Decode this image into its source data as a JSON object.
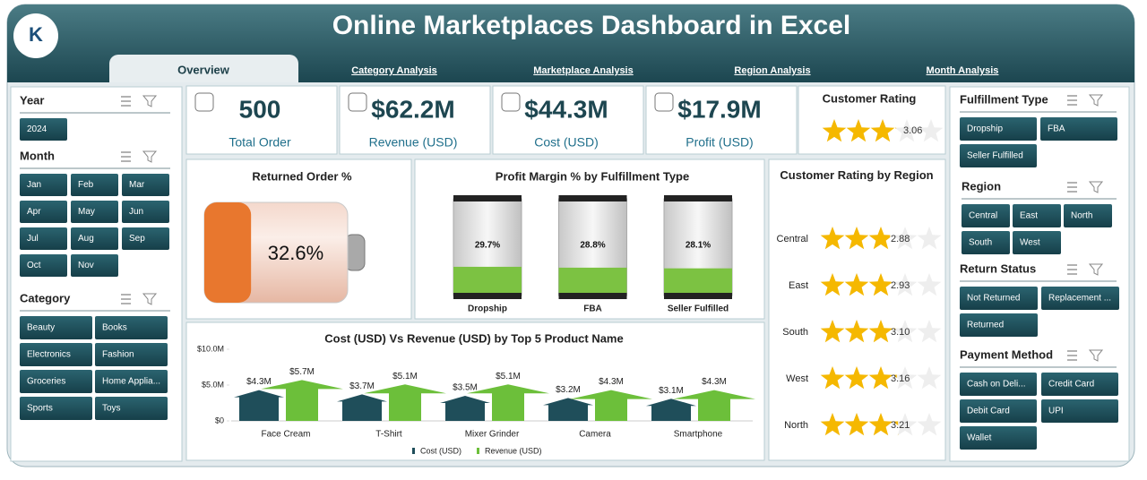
{
  "header": {
    "title": "Online Marketplaces Dashboard in Excel"
  },
  "tabs": [
    "Overview",
    "Category Analysis",
    "Marketplace Analysis",
    "Region Analysis",
    "Month Analysis"
  ],
  "slicers_left": [
    {
      "title": "Year",
      "items": [
        "2024"
      ]
    },
    {
      "title": "Month",
      "items": [
        "Jan",
        "Feb",
        "Mar",
        "Apr",
        "May",
        "Jun",
        "Jul",
        "Aug",
        "Sep",
        "Oct",
        "Nov"
      ]
    },
    {
      "title": "Category",
      "items": [
        "Beauty",
        "Books",
        "Electronics",
        "Fashion",
        "Groceries",
        "Home Applia...",
        "Sports",
        "Toys"
      ]
    }
  ],
  "slicers_right": [
    {
      "title": "Fulfillment Type",
      "items": [
        "Dropship",
        "FBA",
        "Seller Fulfilled"
      ]
    },
    {
      "title": "Region",
      "items": [
        "Central",
        "East",
        "North",
        "South",
        "West"
      ]
    },
    {
      "title": "Return Status",
      "items": [
        "Not Returned",
        "Replacement ...",
        "Returned"
      ]
    },
    {
      "title": "Payment Method",
      "items": [
        "Cash on Deli...",
        "Credit Card",
        "Debit Card",
        "UPI",
        "Wallet"
      ]
    }
  ],
  "kpis": [
    {
      "value": "500",
      "label": "Total Order"
    },
    {
      "value": "$62.2M",
      "label": "Revenue (USD)"
    },
    {
      "value": "$44.3M",
      "label": "Cost (USD)"
    },
    {
      "value": "$17.9M",
      "label": "Profit (USD)"
    }
  ],
  "chart_data": [
    {
      "type": "rating",
      "title": "Customer Rating",
      "values": [
        3.06
      ],
      "xlim": [
        0,
        5
      ],
      "color": "#f5b800"
    },
    {
      "type": "battery",
      "title": "Returned Order %",
      "values": [
        32.6
      ],
      "value_labels": [
        "32.6%"
      ],
      "ylim": [
        0,
        100
      ],
      "color": "#e8772e"
    },
    {
      "type": "cylinder",
      "title": "Profit Margin % by Fulfillment Type",
      "categories": [
        "Dropship",
        "FBA",
        "Seller Fulfilled"
      ],
      "values": [
        29.7,
        28.8,
        28.1
      ],
      "value_labels": [
        "29.7%",
        "28.8%",
        "28.1%"
      ],
      "ylim": [
        0,
        100
      ],
      "color": "#7cc242"
    },
    {
      "type": "bar",
      "title": "Cost (USD) Vs Revenue (USD) by  Top 5 Product Name",
      "categories": [
        "Face Cream",
        "T-Shirt",
        "Mixer Grinder",
        "Camera",
        "Smartphone"
      ],
      "series": [
        {
          "name": "Cost (USD)",
          "color": "#1f4e5a",
          "values": [
            4300000,
            3700000,
            3500000,
            3200000,
            3100000
          ],
          "value_labels": [
            "$4.3M",
            "$3.7M",
            "$3.5M",
            "$3.2M",
            "$3.1M"
          ]
        },
        {
          "name": "Revenue (USD)",
          "color": "#6cbf3a",
          "values": [
            5700000,
            5100000,
            5100000,
            4300000,
            4300000
          ],
          "value_labels": [
            "$5.7M",
            "$5.1M",
            "$5.1M",
            "$4.3M",
            "$4.3M"
          ]
        }
      ],
      "ylim": [
        0,
        10000000
      ],
      "yticks": [
        {
          "value": 0,
          "label": "$0"
        },
        {
          "value": 5000000,
          "label": "$5.0M"
        },
        {
          "value": 10000000,
          "label": "$10.0M"
        }
      ]
    },
    {
      "type": "rating",
      "title": "Customer Rating by Region",
      "categories": [
        "Central",
        "East",
        "South",
        "West",
        "North"
      ],
      "values": [
        2.88,
        2.93,
        3.1,
        3.16,
        3.21
      ],
      "value_labels": [
        "2.88",
        "2.93",
        "3.10",
        "3.16",
        "3.21"
      ],
      "xlim": [
        0,
        5
      ],
      "color": "#f5b800"
    }
  ]
}
